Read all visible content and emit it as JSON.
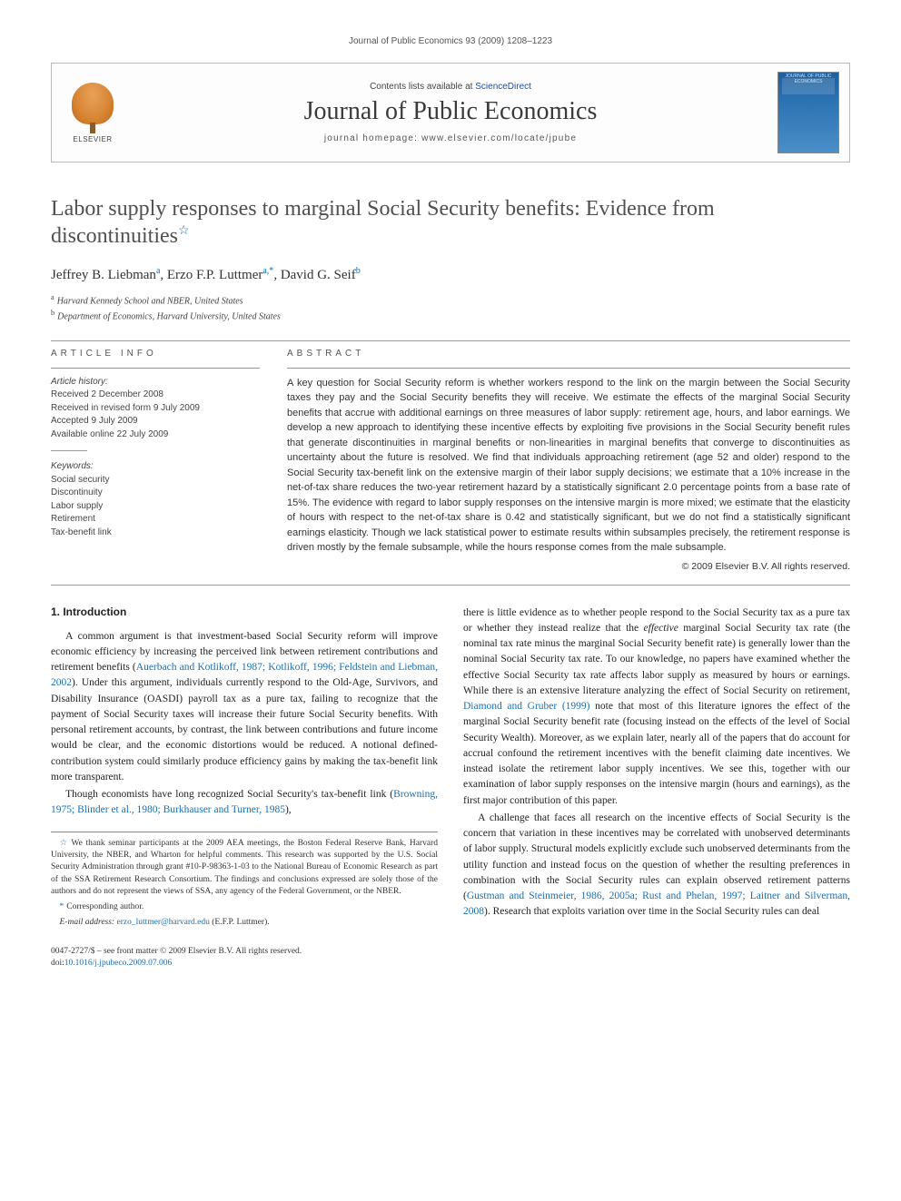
{
  "running_head": "Journal of Public Economics 93 (2009) 1208–1223",
  "masthead": {
    "publisher": "ELSEVIER",
    "contents_prefix": "Contents lists available at ",
    "contents_link": "ScienceDirect",
    "journal": "Journal of Public Economics",
    "homepage_prefix": "journal homepage: ",
    "homepage": "www.elsevier.com/locate/jpube",
    "cover_caption": "JOURNAL OF PUBLIC ECONOMICS"
  },
  "title_main": "Labor supply responses to marginal Social Security benefits: Evidence from discontinuities",
  "authors_line": {
    "a1": "Jeffrey B. Liebman",
    "a1_sup": "a",
    "a2": "Erzo F.P. Luttmer",
    "a2_sup": "a,*",
    "a3": "David G. Seif",
    "a3_sup": "b"
  },
  "affiliations": {
    "a": "Harvard Kennedy School and NBER, United States",
    "b": "Department of Economics, Harvard University, United States"
  },
  "info": {
    "head": "ARTICLE INFO",
    "history_label": "Article history:",
    "received": "Received 2 December 2008",
    "revised": "Received in revised form 9 July 2009",
    "accepted": "Accepted 9 July 2009",
    "online": "Available online 22 July 2009",
    "keywords_label": "Keywords:",
    "k1": "Social security",
    "k2": "Discontinuity",
    "k3": "Labor supply",
    "k4": "Retirement",
    "k5": "Tax-benefit link"
  },
  "abstract": {
    "head": "ABSTRACT",
    "text": "A key question for Social Security reform is whether workers respond to the link on the margin between the Social Security taxes they pay and the Social Security benefits they will receive. We estimate the effects of the marginal Social Security benefits that accrue with additional earnings on three measures of labor supply: retirement age, hours, and labor earnings. We develop a new approach to identifying these incentive effects by exploiting five provisions in the Social Security benefit rules that generate discontinuities in marginal benefits or non-linearities in marginal benefits that converge to discontinuities as uncertainty about the future is resolved. We find that individuals approaching retirement (age 52 and older) respond to the Social Security tax-benefit link on the extensive margin of their labor supply decisions; we estimate that a 10% increase in the net-of-tax share reduces the two-year retirement hazard by a statistically significant 2.0 percentage points from a base rate of 15%. The evidence with regard to labor supply responses on the intensive margin is more mixed; we estimate that the elasticity of hours with respect to the net-of-tax share is 0.42 and statistically significant, but we do not find a statistically significant earnings elasticity. Though we lack statistical power to estimate results within subsamples precisely, the retirement response is driven mostly by the female subsample, while the hours response comes from the male subsample.",
    "copyright": "© 2009 Elsevier B.V. All rights reserved."
  },
  "section1": {
    "heading": "1. Introduction",
    "p1_a": "A common argument is that investment-based Social Security reform will improve economic efficiency by increasing the perceived link between retirement contributions and retirement benefits (",
    "p1_cite": "Auerbach and Kotlikoff, 1987; Kotlikoff, 1996; Feldstein and Liebman, 2002",
    "p1_b": "). Under this argument, individuals currently respond to the Old-Age, Survivors, and Disability Insurance (OASDI) payroll tax as a pure tax, failing to recognize that the payment of Social Security taxes will increase their future Social Security benefits. With personal retirement accounts, by contrast, the link between contributions and future income would be clear, and the economic distortions would be reduced. A notional defined-contribution system could similarly produce efficiency gains by making the tax-benefit link more transparent.",
    "p2_a": "Though economists have long recognized Social Security's tax-benefit link (",
    "p2_cite": "Browning, 1975; Blinder et al., 1980; Burkhauser and Turner, 1985",
    "p2_b": "),",
    "p3_a": "there is little evidence as to whether people respond to the Social Security tax as a pure tax or whether they instead realize that the ",
    "p3_em": "effective",
    "p3_b": " marginal Social Security tax rate (the nominal tax rate minus the marginal Social Security benefit rate) is generally lower than the nominal Social Security tax rate. To our knowledge, no papers have examined whether the effective Social Security tax rate affects labor supply as measured by hours or earnings. While there is an extensive literature analyzing the effect of Social Security on retirement, ",
    "p3_cite": "Diamond and Gruber (1999)",
    "p3_c": " note that most of this literature ignores the effect of the marginal Social Security benefit rate (focusing instead on the effects of the level of Social Security Wealth). Moreover, as we explain later, nearly all of the papers that do account for accrual confound the retirement incentives with the benefit claiming date incentives. We instead isolate the retirement labor supply incentives. We see this, together with our examination of labor supply responses on the intensive margin (hours and earnings), as the first major contribution of this paper.",
    "p4_a": "A challenge that faces all research on the incentive effects of Social Security is the concern that variation in these incentives may be correlated with unobserved determinants of labor supply. Structural models explicitly exclude such unobserved determinants from the utility function and instead focus on the question of whether the resulting preferences in combination with the Social Security rules can explain observed retirement patterns (",
    "p4_cite": "Gustman and Steinmeier, 1986, 2005a; Rust and Phelan, 1997; Laitner and Silverman, 2008",
    "p4_b": "). Research that exploits variation over time in the Social Security rules can deal"
  },
  "footnotes": {
    "thanks": "We thank seminar participants at the 2009 AEA meetings, the Boston Federal Reserve Bank, Harvard University, the NBER, and Wharton for helpful comments. This research was supported by the U.S. Social Security Administration through grant #10-P-98363-1-03 to the National Bureau of Economic Research as part of the SSA Retirement Research Consortium. The findings and conclusions expressed are solely those of the authors and do not represent the views of SSA, any agency of the Federal Government, or the NBER.",
    "corresponding": "Corresponding author.",
    "email_label": "E-mail address:",
    "email": "erzo_luttmer@harvard.edu",
    "email_who": "(E.F.P. Luttmer)."
  },
  "footer": {
    "front_matter": "0047-2727/$ – see front matter © 2009 Elsevier B.V. All rights reserved.",
    "doi_prefix": "doi:",
    "doi": "10.1016/j.jpubeco.2009.07.006"
  },
  "colors": {
    "link": "#1a6fb0",
    "text": "#333333",
    "rule": "#999999"
  }
}
